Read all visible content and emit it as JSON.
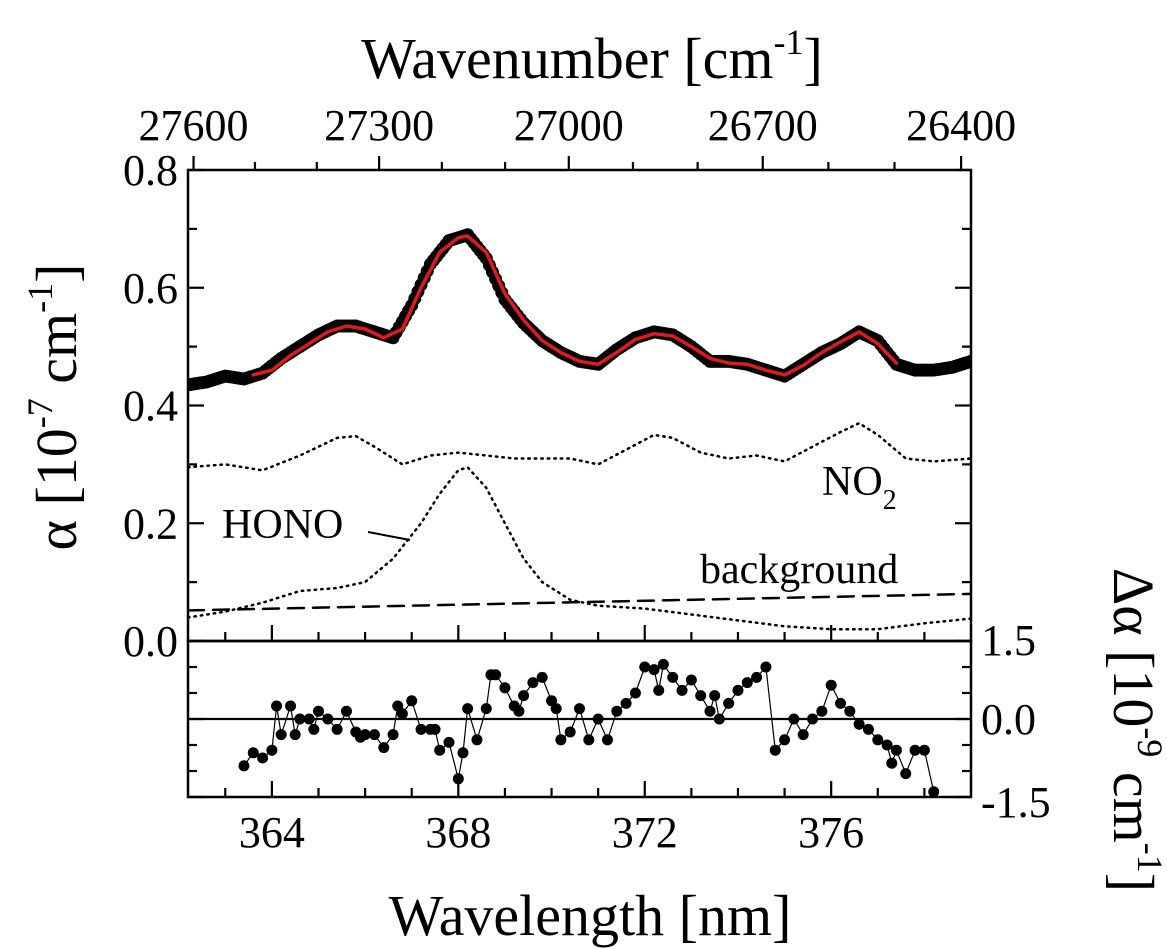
{
  "chart_data": [
    {
      "type": "line",
      "panel": "main",
      "xlabel": "Wavelength [nm]",
      "x2label": {
        "base": "Wavenumber [cm",
        "sup": "-1",
        "tail": "]"
      },
      "ylabel": {
        "prefix": "α [10",
        "sup1": "-7",
        "mid": " cm",
        "sup2": "-1",
        "tail": "]"
      },
      "xlim": [
        362.2,
        379
      ],
      "ylim": [
        0,
        0.8
      ],
      "xticks": [
        364,
        368,
        372,
        376
      ],
      "xtick_labels": [
        "364",
        "368",
        "372",
        "376"
      ],
      "yticks": [
        0.0,
        0.2,
        0.4,
        0.6,
        0.8
      ],
      "ytick_labels": [
        "0.0",
        "0.2",
        "0.4",
        "0.6",
        "0.8"
      ],
      "top_ticks": [
        27600,
        27300,
        27000,
        26700,
        26400
      ],
      "top_tick_labels": [
        "27600",
        "27300",
        "27000",
        "26700",
        "26400"
      ],
      "annotations": [
        {
          "text": "HONO",
          "sub": ""
        },
        {
          "text": "NO",
          "sub": "2"
        },
        {
          "text": "background",
          "sub": ""
        }
      ],
      "series": [
        {
          "style": "dots",
          "color": "#000000",
          "x": [
            362.2,
            362.6,
            363.0,
            363.4,
            363.8,
            364.2,
            364.6,
            365.0,
            365.4,
            365.8,
            366.2,
            366.6,
            367.0,
            367.4,
            367.8,
            368.2,
            368.6,
            369.0,
            369.4,
            369.8,
            370.2,
            370.6,
            371.0,
            371.4,
            371.8,
            372.2,
            372.6,
            373.0,
            373.4,
            373.8,
            374.2,
            374.6,
            375.0,
            375.4,
            375.8,
            376.2,
            376.6,
            377.0,
            377.4,
            377.8,
            378.2,
            378.6,
            379.0
          ],
          "y": [
            0.435,
            0.44,
            0.45,
            0.445,
            0.455,
            0.48,
            0.5,
            0.52,
            0.535,
            0.535,
            0.525,
            0.515,
            0.57,
            0.64,
            0.68,
            0.69,
            0.65,
            0.58,
            0.54,
            0.51,
            0.49,
            0.475,
            0.47,
            0.495,
            0.515,
            0.525,
            0.52,
            0.5,
            0.475,
            0.475,
            0.47,
            0.46,
            0.45,
            0.47,
            0.49,
            0.505,
            0.525,
            0.51,
            0.47,
            0.46,
            0.46,
            0.465,
            0.475
          ]
        },
        {
          "style": "line",
          "color": "#e0191c",
          "x": [
            363.6,
            364.0,
            364.4,
            364.8,
            365.2,
            365.6,
            366.0,
            366.4,
            366.8,
            367.2,
            367.6,
            368.0,
            368.2,
            368.6,
            369.0,
            369.4,
            369.8,
            370.2,
            370.6,
            371.0,
            371.4,
            371.8,
            372.2,
            372.6,
            373.0,
            373.4,
            373.8,
            374.2,
            374.6,
            375.0,
            375.4,
            375.8,
            376.2,
            376.6,
            377.0,
            377.4
          ],
          "y": [
            0.452,
            0.46,
            0.485,
            0.505,
            0.525,
            0.535,
            0.53,
            0.515,
            0.53,
            0.6,
            0.66,
            0.685,
            0.688,
            0.66,
            0.59,
            0.545,
            0.51,
            0.49,
            0.475,
            0.47,
            0.49,
            0.512,
            0.522,
            0.518,
            0.5,
            0.48,
            0.472,
            0.47,
            0.46,
            0.452,
            0.468,
            0.49,
            0.508,
            0.525,
            0.505,
            0.472
          ]
        },
        {
          "style": "dotted",
          "color": "#000000",
          "x": [
            362.2,
            363.0,
            363.8,
            364.6,
            365.4,
            365.8,
            366.2,
            366.8,
            367.4,
            368.0,
            368.6,
            369.2,
            369.8,
            370.4,
            371.0,
            371.6,
            372.2,
            372.6,
            373.2,
            373.8,
            374.4,
            375.0,
            375.6,
            376.2,
            376.6,
            377.0,
            377.6,
            378.2,
            379.0
          ],
          "y": [
            0.295,
            0.3,
            0.29,
            0.315,
            0.345,
            0.348,
            0.33,
            0.3,
            0.315,
            0.32,
            0.315,
            0.31,
            0.31,
            0.31,
            0.3,
            0.325,
            0.35,
            0.345,
            0.32,
            0.31,
            0.315,
            0.305,
            0.33,
            0.355,
            0.37,
            0.35,
            0.31,
            0.305,
            0.31
          ]
        },
        {
          "style": "dotted",
          "color": "#000000",
          "x": [
            362.2,
            363.0,
            363.8,
            364.6,
            365.4,
            366.0,
            366.6,
            367.2,
            367.6,
            368.0,
            368.2,
            368.6,
            369.0,
            369.4,
            369.8,
            370.4,
            371.0,
            372.0,
            373.0,
            374.0,
            375.0,
            376.0,
            377.0,
            378.0,
            379.0
          ],
          "y": [
            0.04,
            0.05,
            0.065,
            0.085,
            0.09,
            0.1,
            0.14,
            0.2,
            0.25,
            0.29,
            0.295,
            0.26,
            0.2,
            0.14,
            0.1,
            0.07,
            0.06,
            0.055,
            0.045,
            0.035,
            0.025,
            0.02,
            0.02,
            0.03,
            0.038
          ]
        },
        {
          "style": "dashed",
          "color": "#000000",
          "x": [
            362.2,
            379.0
          ],
          "y": [
            0.052,
            0.08
          ]
        }
      ]
    },
    {
      "type": "scatter",
      "panel": "residual",
      "ylabel": {
        "prefix": "Δα [10",
        "sup1": "-9",
        "mid": " cm",
        "sup2": "-1",
        "tail": "]"
      },
      "xlim": [
        362.2,
        379
      ],
      "ylim": [
        -1.5,
        1.5
      ],
      "yticks": [
        -1.5,
        0.0,
        1.5
      ],
      "ytick_labels": [
        "-1.5",
        "0.0",
        "1.5"
      ],
      "zero_line": true,
      "x": [
        363.4,
        363.6,
        363.8,
        364.0,
        364.1,
        364.2,
        364.4,
        364.5,
        364.6,
        364.8,
        364.9,
        365.0,
        365.2,
        365.4,
        365.6,
        365.8,
        365.9,
        366.0,
        366.2,
        366.4,
        366.6,
        366.7,
        366.8,
        367.0,
        367.2,
        367.4,
        367.5,
        367.6,
        367.8,
        368.0,
        368.1,
        368.2,
        368.4,
        368.6,
        368.7,
        368.8,
        369.0,
        369.2,
        369.3,
        369.4,
        369.6,
        369.8,
        370.0,
        370.1,
        370.2,
        370.4,
        370.6,
        370.8,
        371.0,
        371.2,
        371.4,
        371.6,
        371.8,
        372.0,
        372.2,
        372.3,
        372.4,
        372.6,
        372.8,
        373.0,
        373.2,
        373.4,
        373.5,
        373.6,
        373.8,
        374.0,
        374.2,
        374.4,
        374.6,
        374.8,
        375.0,
        375.2,
        375.4,
        375.6,
        375.8,
        376.0,
        376.2,
        376.4,
        376.6,
        376.8,
        377.0,
        377.2,
        377.3,
        377.4,
        377.6,
        377.8,
        378.0,
        378.2
      ],
      "y": [
        -0.9,
        -0.65,
        -0.75,
        -0.6,
        0.25,
        -0.3,
        0.25,
        -0.3,
        0.0,
        0.0,
        -0.2,
        0.15,
        0.0,
        -0.2,
        0.15,
        -0.25,
        -0.35,
        -0.3,
        -0.3,
        -0.55,
        -0.3,
        0.25,
        0.1,
        0.35,
        -0.2,
        -0.2,
        -0.2,
        -0.6,
        -0.45,
        -1.15,
        -0.65,
        0.2,
        -0.4,
        0.2,
        0.85,
        0.85,
        0.6,
        0.25,
        0.15,
        0.45,
        0.7,
        0.8,
        0.35,
        0.2,
        -0.4,
        -0.25,
        0.2,
        -0.4,
        0.0,
        -0.4,
        0.15,
        0.3,
        0.5,
        1.0,
        0.95,
        0.55,
        1.05,
        0.8,
        0.55,
        0.75,
        0.45,
        0.15,
        0.45,
        0.0,
        0.3,
        0.55,
        0.7,
        0.8,
        1.0,
        -0.6,
        -0.4,
        0.0,
        -0.3,
        0.0,
        0.15,
        0.65,
        0.3,
        0.15,
        -0.1,
        -0.2,
        -0.4,
        -0.5,
        -0.85,
        -0.6,
        -1.05,
        -0.6,
        -0.6,
        -1.4
      ]
    }
  ]
}
